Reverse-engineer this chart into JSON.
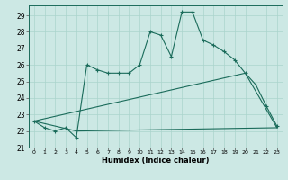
{
  "title": "",
  "xlabel": "Humidex (Indice chaleur)",
  "ylabel": "",
  "bg_color": "#cce8e4",
  "line_color": "#1a6b5a",
  "grid_color": "#aad4cc",
  "xlim": [
    -0.5,
    23.5
  ],
  "ylim": [
    21,
    29.6
  ],
  "xticks": [
    0,
    1,
    2,
    3,
    4,
    5,
    6,
    7,
    8,
    9,
    10,
    11,
    12,
    13,
    14,
    15,
    16,
    17,
    18,
    19,
    20,
    21,
    22,
    23
  ],
  "yticks": [
    21,
    22,
    23,
    24,
    25,
    26,
    27,
    28,
    29
  ],
  "line1_x": [
    0,
    1,
    2,
    3,
    4,
    5,
    6,
    7,
    8,
    9,
    10,
    11,
    12,
    13,
    14,
    15,
    16,
    17,
    18,
    19,
    20,
    21,
    22,
    23
  ],
  "line1_y": [
    22.6,
    22.2,
    22.0,
    22.2,
    21.6,
    26.0,
    25.7,
    25.5,
    25.5,
    25.5,
    26.0,
    28.0,
    27.8,
    26.5,
    29.2,
    29.2,
    27.5,
    27.2,
    26.8,
    26.3,
    25.5,
    24.8,
    23.5,
    22.3
  ],
  "line2_x": [
    0,
    4,
    23
  ],
  "line2_y": [
    22.6,
    22.0,
    22.2
  ],
  "line3_x": [
    0,
    20,
    23
  ],
  "line3_y": [
    22.6,
    25.5,
    22.2
  ]
}
